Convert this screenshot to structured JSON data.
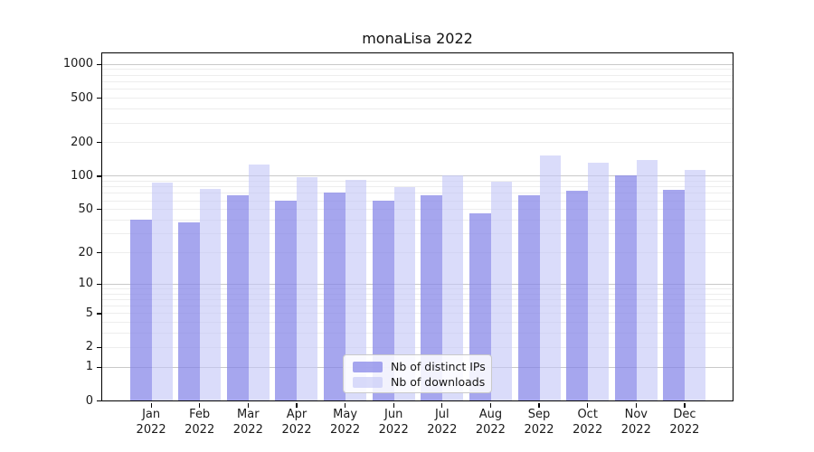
{
  "title": "monaLisa 2022",
  "chart_data": {
    "type": "bar",
    "title": "monaLisa 2022",
    "categories": [
      "Jan 2022",
      "Feb 2022",
      "Mar 2022",
      "Apr 2022",
      "May 2022",
      "Jun 2022",
      "Jul 2022",
      "Aug 2022",
      "Sep 2022",
      "Oct 2022",
      "Nov 2022",
      "Dec 2022"
    ],
    "series": [
      {
        "name": "Nb of distinct IPs",
        "color": "rgba(131,131,231,0.72)",
        "values": [
          40,
          38,
          67,
          60,
          71,
          60,
          67,
          46,
          67,
          73,
          101,
          75
        ]
      },
      {
        "name": "Nb of downloads",
        "color": "rgba(196,198,247,0.62)",
        "values": [
          86,
          76,
          125,
          97,
          92,
          79,
          101,
          88,
          152,
          132,
          139,
          112
        ]
      }
    ],
    "xlabel": "",
    "ylabel": "",
    "y_axis": {
      "scale": "log10(1+v)",
      "ylim": [
        0,
        1245
      ],
      "tick_labels": [
        0,
        1,
        2,
        5,
        10,
        20,
        50,
        100,
        200,
        500,
        1000
      ],
      "major_gridlines": [
        1,
        10,
        100,
        1000
      ],
      "minor_gridlines": [
        2,
        3,
        4,
        5,
        6,
        7,
        8,
        9,
        20,
        30,
        40,
        50,
        60,
        70,
        80,
        90,
        200,
        300,
        400,
        500,
        600,
        700,
        800,
        900
      ]
    },
    "legend": {
      "position": "lower center",
      "items": [
        "Nb of distinct IPs",
        "Nb of downloads"
      ]
    },
    "grid": true
  },
  "colors": {
    "background": "#ffffff",
    "axis": "#000000",
    "major_grid": "#c9c9c9",
    "minor_grid": "#ededed",
    "text": "#1a1a1a",
    "legend_border": "#c9c9c9",
    "legend_background": "rgba(255,255,255,0.85)"
  }
}
